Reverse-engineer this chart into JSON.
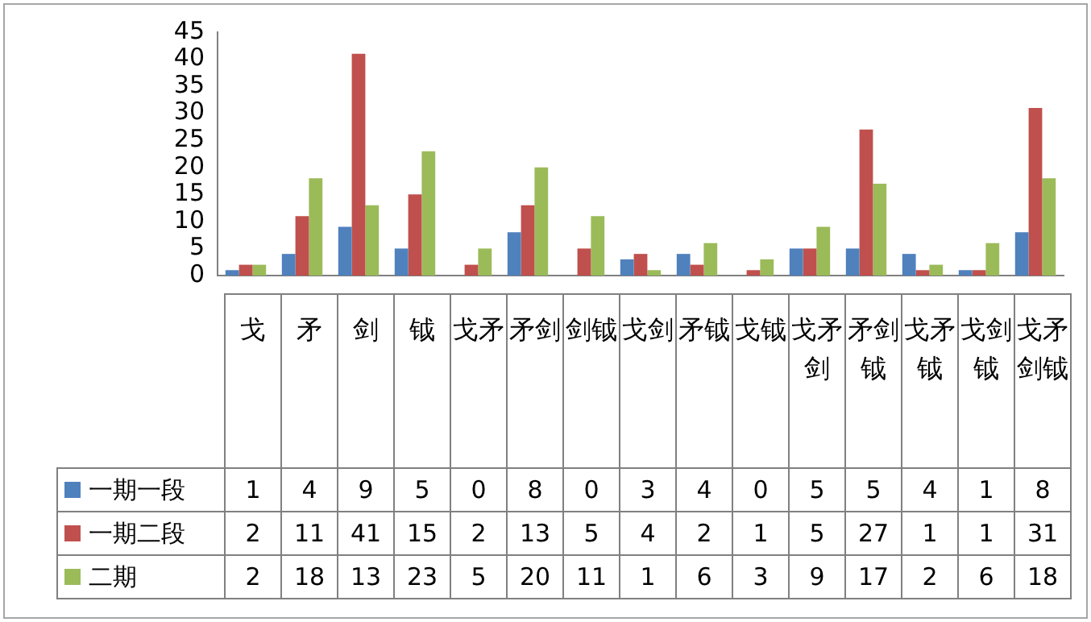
{
  "chart_data": {
    "type": "bar",
    "categories": [
      "戈",
      "矛",
      "剑",
      "钺",
      "戈矛",
      "矛剑",
      "剑钺",
      "戈剑",
      "矛钺",
      "戈钺",
      "戈矛剑",
      "矛剑钺",
      "戈矛钺",
      "戈剑钺",
      "戈矛剑钺"
    ],
    "series": [
      {
        "name": "一期一段",
        "color": "#4f81bd",
        "values": [
          1,
          4,
          9,
          5,
          0,
          8,
          0,
          3,
          4,
          0,
          5,
          5,
          4,
          1,
          8
        ]
      },
      {
        "name": "一期二段",
        "color": "#c0504d",
        "values": [
          2,
          11,
          41,
          15,
          2,
          13,
          5,
          4,
          2,
          1,
          5,
          27,
          1,
          1,
          31
        ]
      },
      {
        "name": "二期",
        "color": "#9bbb59",
        "values": [
          2,
          18,
          13,
          23,
          5,
          20,
          11,
          1,
          6,
          3,
          9,
          17,
          2,
          6,
          18
        ]
      }
    ],
    "ylim": [
      0,
      45
    ],
    "yticks": [
      0,
      5,
      10,
      15,
      20,
      25,
      30,
      35,
      40,
      45
    ],
    "grid": false,
    "legend": "bottom left",
    "data_labels": true
  }
}
